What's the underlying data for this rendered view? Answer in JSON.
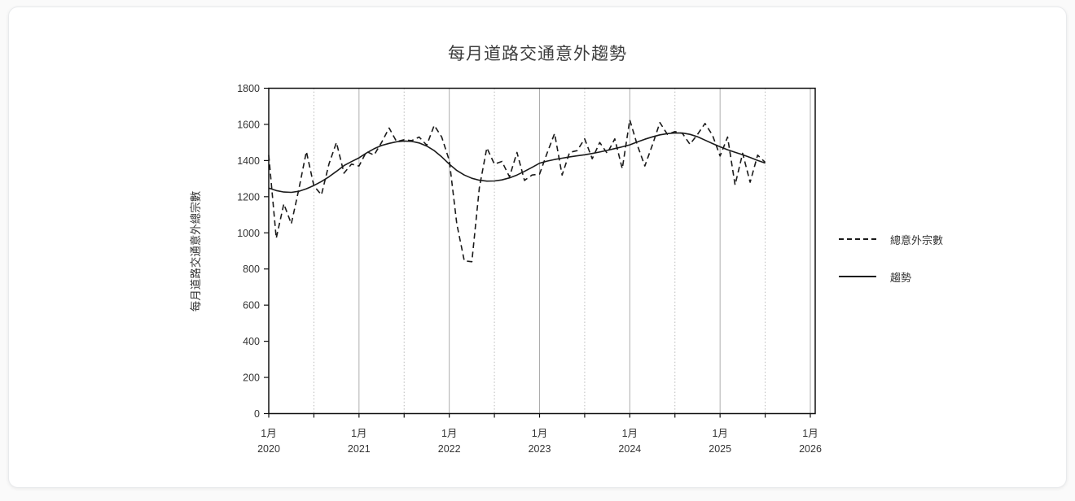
{
  "card": {
    "title": "每月道路交通意外趨勢"
  },
  "legend": {
    "items": [
      {
        "label": "總意外宗數",
        "style": "dashed"
      },
      {
        "label": "趨勢",
        "style": "solid"
      }
    ]
  },
  "chart_data": {
    "type": "line",
    "title": "每月道路交通意外趨勢",
    "xlabel": "",
    "ylabel": "每月道路交通意外總宗數",
    "ylim": [
      0,
      1800
    ],
    "y_ticks": [
      0,
      200,
      400,
      600,
      800,
      1000,
      1200,
      1400,
      1600,
      1800
    ],
    "x_ticks": [
      {
        "month": "1月",
        "year": "2020"
      },
      {
        "month": "1月",
        "year": "2021"
      },
      {
        "month": "1月",
        "year": "2022"
      },
      {
        "month": "1月",
        "year": "2023"
      },
      {
        "month": "1月",
        "year": "2024"
      },
      {
        "month": "1月",
        "year": "2025"
      },
      {
        "month": "1月",
        "year": "2026"
      }
    ],
    "x_start": "2020-01",
    "x_interval": "monthly",
    "n_points": 67,
    "grid": "vertical only: solid line each January, dotted line each July",
    "legend_position": "right",
    "colors": {
      "line": "#1a1a1a",
      "grid_solid": "#adadad",
      "grid_dotted": "#b9b9b9",
      "text": "#333333",
      "frame": "#111111"
    },
    "series": [
      {
        "name": "總意外宗數",
        "style": "dashed",
        "color": "#1a1a1a",
        "values": [
          1430,
          970,
          1160,
          1050,
          1240,
          1450,
          1260,
          1210,
          1380,
          1500,
          1330,
          1380,
          1370,
          1450,
          1430,
          1500,
          1580,
          1505,
          1515,
          1510,
          1530,
          1485,
          1595,
          1530,
          1400,
          1050,
          845,
          840,
          1250,
          1470,
          1380,
          1395,
          1310,
          1445,
          1290,
          1320,
          1325,
          1440,
          1550,
          1320,
          1445,
          1455,
          1520,
          1410,
          1500,
          1440,
          1520,
          1355,
          1625,
          1485,
          1370,
          1485,
          1610,
          1545,
          1560,
          1550,
          1490,
          1545,
          1605,
          1540,
          1425,
          1530,
          1265,
          1440,
          1280,
          1430,
          1390
        ]
      },
      {
        "name": "趨勢",
        "style": "solid",
        "color": "#1a1a1a",
        "values": [
          1248,
          1234,
          1226,
          1224,
          1230,
          1244,
          1262,
          1284,
          1310,
          1340,
          1372,
          1394,
          1415,
          1442,
          1465,
          1483,
          1495,
          1504,
          1508,
          1506,
          1497,
          1480,
          1455,
          1420,
          1380,
          1345,
          1320,
          1302,
          1291,
          1286,
          1287,
          1293,
          1304,
          1320,
          1340,
          1362,
          1385,
          1397,
          1406,
          1413,
          1420,
          1426,
          1432,
          1439,
          1447,
          1456,
          1466,
          1476,
          1487,
          1503,
          1518,
          1531,
          1542,
          1549,
          1553,
          1552,
          1545,
          1532,
          1513,
          1494,
          1476,
          1460,
          1446,
          1432,
          1417,
          1401,
          1386
        ]
      }
    ]
  }
}
